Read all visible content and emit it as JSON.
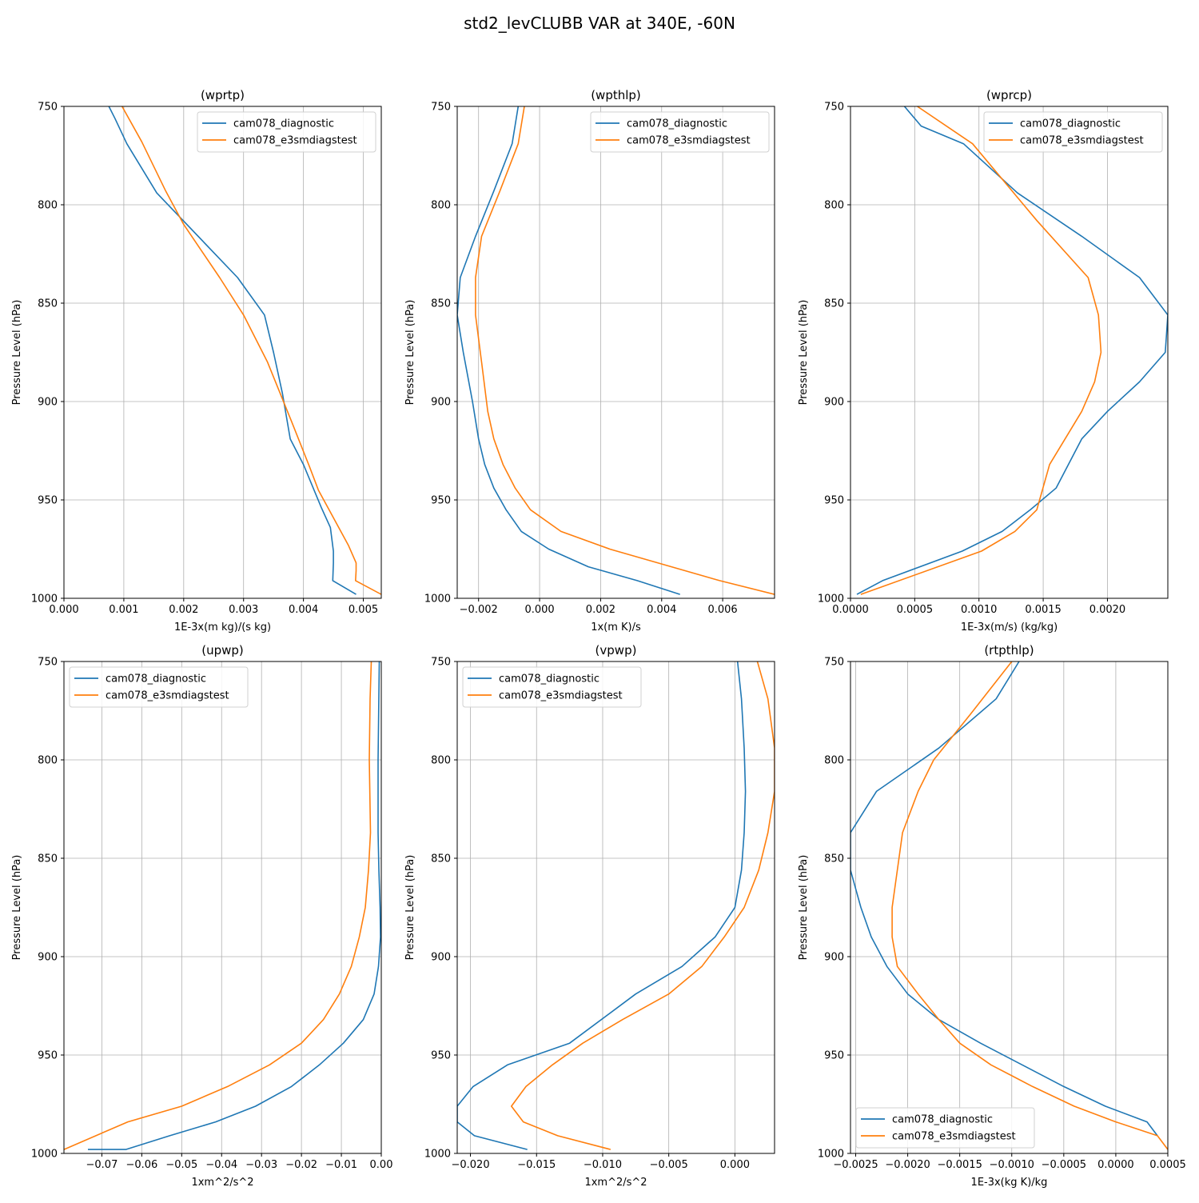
{
  "page_title": "std2_levCLUBB VAR at 340E, -60N",
  "colors": {
    "diagnostic": "#1f77b4",
    "e3smdiagstest": "#ff7f0e"
  },
  "chart_data": [
    {
      "type": "line",
      "title": "(wprtp)",
      "xlabel": "1E-3x(m kg)/(s kg)",
      "ylabel": "Pressure Level (hPa)",
      "xlim": [
        0,
        0.0053
      ],
      "ylim": [
        1000,
        750
      ],
      "xticks": [
        0,
        0.001,
        0.002,
        0.003,
        0.004,
        0.005
      ],
      "xtick_labels": [
        "0.000",
        "0.001",
        "0.002",
        "0.003",
        "0.004",
        "0.005"
      ],
      "yticks": [
        750,
        800,
        850,
        900,
        950,
        1000
      ],
      "ytick_labels": [
        "750",
        "800",
        "850",
        "900",
        "950",
        "1000"
      ],
      "legend": "top-right",
      "grid": true,
      "series": [
        {
          "name": "cam078_diagnostic",
          "x": [
            0.00075,
            0.00085,
            0.00105,
            0.00155,
            0.0029,
            0.00335,
            0.0035,
            0.00365,
            0.00378,
            0.004,
            0.0043,
            0.00445,
            0.0045,
            0.0045,
            0.00449,
            0.00488
          ],
          "y": [
            750,
            756,
            769,
            794,
            837,
            856,
            875,
            896,
            919,
            932,
            954,
            964,
            976,
            982,
            991,
            998
          ]
        },
        {
          "name": "cam078_e3smdiagstest",
          "x": [
            0.00097,
            0.0013,
            0.0017,
            0.002,
            0.0026,
            0.003,
            0.0034,
            0.0038,
            0.0041,
            0.00425,
            0.00475,
            0.00488,
            0.00488,
            0.00487,
            0.0053
          ],
          "y": [
            750,
            768,
            793,
            810,
            837,
            856,
            880,
            910,
            933,
            945,
            973,
            982,
            986,
            991,
            998
          ]
        }
      ]
    },
    {
      "type": "line",
      "title": "(wpthlp)",
      "xlabel": "1x(m K)/s",
      "ylabel": "Pressure Level (hPa)",
      "xlim": [
        -0.0027,
        0.0077
      ],
      "ylim": [
        1000,
        750
      ],
      "xticks": [
        -0.002,
        0,
        0.002,
        0.004,
        0.006
      ],
      "xtick_labels": [
        "−0.002",
        "0.000",
        "0.002",
        "0.004",
        "0.006"
      ],
      "yticks": [
        750,
        800,
        850,
        900,
        950,
        1000
      ],
      "ytick_labels": [
        "750",
        "800",
        "850",
        "900",
        "950",
        "1000"
      ],
      "legend": "top-right",
      "grid": true,
      "series": [
        {
          "name": "cam078_diagnostic",
          "x": [
            -0.0007,
            -0.0009,
            -0.0015,
            -0.0021,
            -0.0026,
            -0.0027,
            -0.0025,
            -0.0022,
            -0.002,
            -0.0018,
            -0.0015,
            -0.0011,
            -0.0006,
            0.0003,
            0.0016,
            0.0032,
            0.0046
          ],
          "y": [
            750,
            769,
            793,
            816,
            837,
            856,
            875,
            900,
            919,
            932,
            944,
            955,
            966,
            975,
            984,
            991,
            998
          ]
        },
        {
          "name": "cam078_e3smdiagstest",
          "x": [
            -0.0005,
            -0.0007,
            -0.0013,
            -0.0019,
            -0.0021,
            -0.0021,
            -0.0019,
            -0.0017,
            -0.0015,
            -0.0012,
            -0.0008,
            -0.0003,
            0.0007,
            0.0023,
            0.0059,
            0.0077
          ],
          "y": [
            750,
            769,
            793,
            816,
            837,
            856,
            880,
            905,
            919,
            932,
            944,
            955,
            966,
            975,
            991,
            998
          ]
        }
      ]
    },
    {
      "type": "line",
      "title": "(wprcp)",
      "xlabel": "1E-3x(m/s) (kg/kg)",
      "ylabel": "Pressure Level (hPa)",
      "xlim": [
        0,
        0.00247
      ],
      "ylim": [
        1000,
        750
      ],
      "xticks": [
        0,
        0.0005,
        0.001,
        0.0015,
        0.002
      ],
      "xtick_labels": [
        "0.0000",
        "0.0005",
        "0.0010",
        "0.0015",
        "0.0020"
      ],
      "yticks": [
        750,
        800,
        850,
        900,
        950,
        1000
      ],
      "ytick_labels": [
        "750",
        "800",
        "850",
        "900",
        "950",
        "1000"
      ],
      "legend": "top-right",
      "grid": true,
      "series": [
        {
          "name": "cam078_diagnostic",
          "x": [
            0.00042,
            0.00055,
            0.00088,
            0.0013,
            0.0018,
            0.00225,
            0.00247,
            0.00245,
            0.00225,
            0.002,
            0.0018,
            0.0016,
            0.0014,
            0.00118,
            0.00087,
            0.00025,
            5e-05
          ],
          "y": [
            750,
            760,
            769,
            794,
            816,
            837,
            856,
            875,
            890,
            905,
            919,
            944,
            955,
            966,
            976,
            991,
            998
          ]
        },
        {
          "name": "cam078_e3smdiagstest",
          "x": [
            0.00052,
            0.00095,
            0.00145,
            0.00185,
            0.00193,
            0.00195,
            0.0019,
            0.0018,
            0.00155,
            0.00145,
            0.00128,
            0.00102,
            8e-05
          ],
          "y": [
            750,
            769,
            808,
            837,
            856,
            875,
            890,
            905,
            932,
            955,
            966,
            976,
            998
          ]
        }
      ]
    },
    {
      "type": "line",
      "title": "(upwp)",
      "xlabel": "1xm^2/s^2",
      "ylabel": "Pressure Level (hPa)",
      "xlim": [
        -0.0795,
        0
      ],
      "ylim": [
        1000,
        750
      ],
      "xticks": [
        -0.07,
        -0.06,
        -0.05,
        -0.04,
        -0.03,
        -0.02,
        -0.01,
        0
      ],
      "xtick_labels": [
        "−0.07",
        "−0.06",
        "−0.05",
        "−0.04",
        "−0.03",
        "−0.02",
        "−0.01",
        "0.00"
      ],
      "yticks": [
        750,
        800,
        850,
        900,
        950,
        1000
      ],
      "ytick_labels": [
        "750",
        "800",
        "850",
        "900",
        "950",
        "1000"
      ],
      "legend": "top-left",
      "grid": true,
      "series": [
        {
          "name": "cam078_diagnostic",
          "x": [
            -0.0005,
            -0.0008,
            -0.0008,
            -0.0006,
            -0.0003,
            -0.0002,
            -0.0007,
            -0.0018,
            -0.0045,
            -0.0095,
            -0.0155,
            -0.0225,
            -0.0315,
            -0.0415,
            -0.053,
            -0.064,
            -0.0735
          ],
          "y": [
            750,
            800,
            837,
            856,
            875,
            890,
            905,
            919,
            932,
            944,
            955,
            966,
            976,
            984,
            991,
            998,
            998
          ]
        },
        {
          "name": "cam078_e3smdiagstest",
          "x": [
            -0.0025,
            -0.0028,
            -0.003,
            -0.0027,
            -0.0032,
            -0.004,
            -0.0055,
            -0.0075,
            -0.0105,
            -0.0145,
            -0.02,
            -0.028,
            -0.0385,
            -0.05,
            -0.0635,
            -0.0795
          ],
          "y": [
            750,
            769,
            800,
            837,
            856,
            875,
            890,
            905,
            919,
            932,
            944,
            955,
            966,
            976,
            984,
            998
          ]
        }
      ]
    },
    {
      "type": "line",
      "title": "(vpwp)",
      "xlabel": "1xm^2/s^2",
      "ylabel": "Pressure Level (hPa)",
      "xlim": [
        -0.021,
        0.003
      ],
      "ylim": [
        1000,
        750
      ],
      "xticks": [
        -0.02,
        -0.015,
        -0.01,
        -0.005,
        0
      ],
      "xtick_labels": [
        "−0.020",
        "−0.015",
        "−0.010",
        "−0.005",
        "0.000"
      ],
      "yticks": [
        750,
        800,
        850,
        900,
        950,
        1000
      ],
      "ytick_labels": [
        "750",
        "800",
        "850",
        "900",
        "950",
        "1000"
      ],
      "legend": "top-left",
      "grid": true,
      "series": [
        {
          "name": "cam078_diagnostic",
          "x": [
            0.0002,
            0.0005,
            0.0007,
            0.0008,
            0.0007,
            0.0005,
            0.0,
            -0.0015,
            -0.004,
            -0.0075,
            -0.0125,
            -0.0172,
            -0.0198,
            -0.021,
            -0.021,
            -0.0197,
            -0.0157
          ],
          "y": [
            750,
            769,
            794,
            816,
            837,
            856,
            875,
            890,
            905,
            919,
            944,
            955,
            966,
            976,
            984,
            991,
            998
          ]
        },
        {
          "name": "cam078_e3smdiagstest",
          "x": [
            0.0017,
            0.0025,
            0.003,
            0.003,
            0.0025,
            0.0018,
            0.0007,
            -0.0008,
            -0.0025,
            -0.005,
            -0.0085,
            -0.0115,
            -0.0138,
            -0.0158,
            -0.0169,
            -0.016,
            -0.0134,
            -0.0094
          ],
          "y": [
            750,
            769,
            794,
            816,
            837,
            856,
            875,
            890,
            905,
            919,
            932,
            944,
            955,
            966,
            976,
            984,
            991,
            998
          ]
        }
      ]
    },
    {
      "type": "line",
      "title": "(rtpthlp)",
      "xlabel": "1E-3x(kg K)/kg",
      "ylabel": "Pressure Level (hPa)",
      "xlim": [
        -0.00255,
        0.0005
      ],
      "ylim": [
        1000,
        750
      ],
      "xticks": [
        -0.0025,
        -0.002,
        -0.0015,
        -0.001,
        -0.0005,
        0,
        0.0005
      ],
      "xtick_labels": [
        "−0.0025",
        "−0.0020",
        "−0.0015",
        "−0.0010",
        "−0.0005",
        "0.0000",
        "0.0005"
      ],
      "yticks": [
        750,
        800,
        850,
        900,
        950,
        1000
      ],
      "ytick_labels": [
        "750",
        "800",
        "850",
        "900",
        "950",
        "1000"
      ],
      "legend": "bottom-left",
      "grid": true,
      "series": [
        {
          "name": "cam078_diagnostic",
          "x": [
            -0.00093,
            -0.00115,
            -0.0017,
            -0.0023,
            -0.00255,
            -0.00255,
            -0.00245,
            -0.00235,
            -0.0022,
            -0.002,
            -0.0017,
            -0.0013,
            -0.0009,
            -0.0005,
            -0.0001,
            0.0003,
            0.0004
          ],
          "y": [
            750,
            769,
            794,
            816,
            837,
            856,
            875,
            890,
            905,
            919,
            932,
            944,
            955,
            966,
            976,
            984,
            991
          ]
        },
        {
          "name": "cam078_e3smdiagstest",
          "x": [
            -0.001,
            -0.0014,
            -0.00175,
            -0.0019,
            -0.00205,
            -0.0021,
            -0.00215,
            -0.00215,
            -0.0021,
            -0.0019,
            -0.0017,
            -0.0015,
            -0.0012,
            -0.0008,
            -0.0004,
            0.0,
            0.0004,
            0.0005
          ],
          "y": [
            750,
            777,
            800,
            816,
            837,
            856,
            875,
            890,
            905,
            919,
            932,
            944,
            955,
            966,
            976,
            984,
            991,
            998
          ]
        }
      ]
    }
  ]
}
